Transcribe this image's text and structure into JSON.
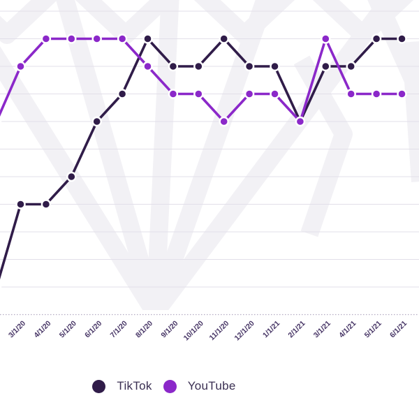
{
  "chart_data": {
    "type": "line",
    "title": "",
    "x_labels": [
      "3/1/20",
      "4/1/20",
      "5/1/20",
      "6/1/20",
      "7/1/20",
      "8/1/20",
      "9/1/20",
      "10/1/20",
      "11/1/20",
      "12/1/20",
      "1/1/21",
      "2/1/21",
      "3/1/21",
      "4/1/21",
      "5/1/21",
      "6/1/21"
    ],
    "x_label_rotation_deg": -45,
    "y_axis_labels_visible": false,
    "y_gridline_rows": 12,
    "value_encoding": "level = gridline row counted from the top (1 = topmost gridline); data points sit exactly on gridlines",
    "series": [
      {
        "name": "TikTok",
        "color": "#301c49",
        "levels": [
          8,
          8,
          7,
          5,
          4,
          2,
          3,
          3,
          2,
          3,
          3,
          5,
          3,
          3,
          2,
          2
        ],
        "enters_from_left_at_level": 11
      },
      {
        "name": "YouTube",
        "color": "#8b28c9",
        "levels": [
          3,
          2,
          2,
          2,
          2,
          3,
          4,
          4,
          5,
          4,
          4,
          5,
          2,
          4,
          4,
          4
        ],
        "enters_from_left_at_level": 5
      }
    ],
    "legend_position": "bottom-center",
    "grid": "horizontal gridlines only"
  },
  "legend": {
    "items": [
      {
        "label": "TikTok",
        "color": "#301c49"
      },
      {
        "label": "YouTube",
        "color": "#8b28c9"
      }
    ]
  },
  "colors": {
    "background": "#ffffff",
    "gridline": "#e2dfe9",
    "axis_line": "#b3abc2",
    "x_label_text": "#453364",
    "legend_text": "#3a2f52",
    "watermark": "#f2f1f5",
    "point_halo": "#ffffff"
  },
  "decor": {
    "watermark_icon": "gem-diamond-outline"
  }
}
